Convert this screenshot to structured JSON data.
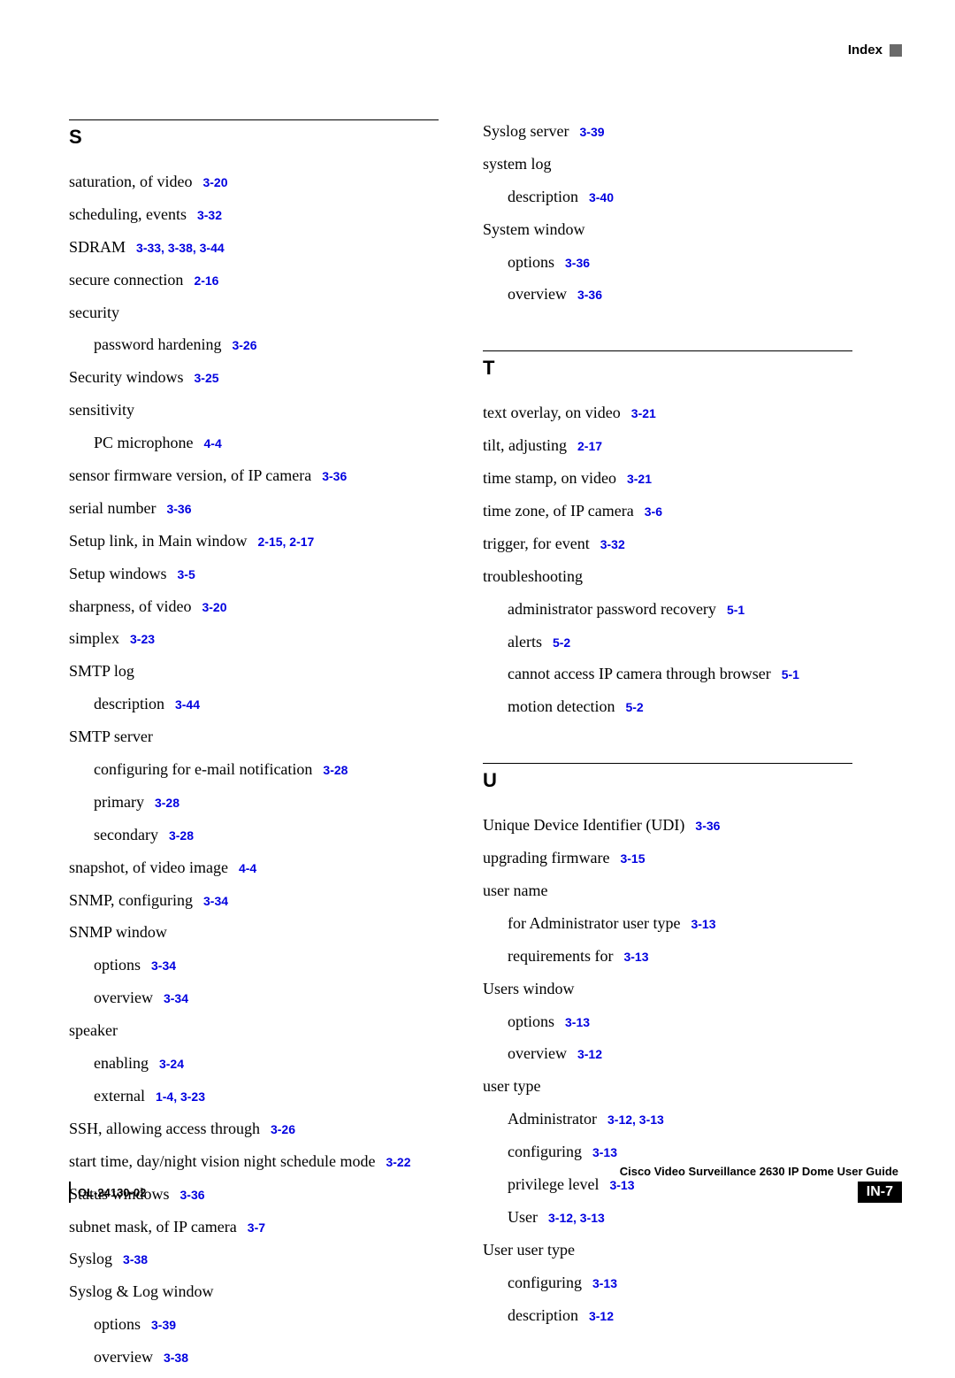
{
  "header": {
    "label": "Index"
  },
  "footer": {
    "title": "Cisco Video Surveillance 2630 IP Dome User Guide",
    "docnum": "OL-24130-02",
    "pagenum": "IN-7"
  },
  "link_color": "#0000e0",
  "left_column": {
    "sections": [
      {
        "letter": "S",
        "entries": [
          {
            "text": "saturation, of video",
            "refs": [
              "3-20"
            ],
            "indent": 0
          },
          {
            "text": "scheduling, events",
            "refs": [
              "3-32"
            ],
            "indent": 0
          },
          {
            "text": "SDRAM",
            "refs": [
              "3-33, 3-38, 3-44"
            ],
            "indent": 0
          },
          {
            "text": "secure connection",
            "refs": [
              "2-16"
            ],
            "indent": 0
          },
          {
            "text": "security",
            "refs": [],
            "indent": 0
          },
          {
            "text": "password hardening",
            "refs": [
              "3-26"
            ],
            "indent": 1
          },
          {
            "text": "Security windows",
            "refs": [
              "3-25"
            ],
            "indent": 0
          },
          {
            "text": "sensitivity",
            "refs": [],
            "indent": 0
          },
          {
            "text": "PC microphone",
            "refs": [
              "4-4"
            ],
            "indent": 1
          },
          {
            "text": "sensor firmware version, of IP camera",
            "refs": [
              "3-36"
            ],
            "indent": 0
          },
          {
            "text": "serial number",
            "refs": [
              "3-36"
            ],
            "indent": 0
          },
          {
            "text": "Setup link, in Main window",
            "refs": [
              "2-15, 2-17"
            ],
            "indent": 0
          },
          {
            "text": "Setup windows",
            "refs": [
              "3-5"
            ],
            "indent": 0
          },
          {
            "text": "sharpness, of video",
            "refs": [
              "3-20"
            ],
            "indent": 0
          },
          {
            "text": "simplex",
            "refs": [
              "3-23"
            ],
            "indent": 0
          },
          {
            "text": "SMTP log",
            "refs": [],
            "indent": 0
          },
          {
            "text": "description",
            "refs": [
              "3-44"
            ],
            "indent": 1
          },
          {
            "text": "SMTP server",
            "refs": [],
            "indent": 0
          },
          {
            "text": "configuring for e-mail notification",
            "refs": [
              "3-28"
            ],
            "indent": 1
          },
          {
            "text": "primary",
            "refs": [
              "3-28"
            ],
            "indent": 1
          },
          {
            "text": "secondary",
            "refs": [
              "3-28"
            ],
            "indent": 1
          },
          {
            "text": "snapshot, of video image",
            "refs": [
              "4-4"
            ],
            "indent": 0
          },
          {
            "text": "SNMP, configuring",
            "refs": [
              "3-34"
            ],
            "indent": 0
          },
          {
            "text": "SNMP window",
            "refs": [],
            "indent": 0
          },
          {
            "text": "options",
            "refs": [
              "3-34"
            ],
            "indent": 1
          },
          {
            "text": "overview",
            "refs": [
              "3-34"
            ],
            "indent": 1
          },
          {
            "text": "speaker",
            "refs": [],
            "indent": 0
          },
          {
            "text": "enabling",
            "refs": [
              "3-24"
            ],
            "indent": 1
          },
          {
            "text": "external",
            "refs": [
              "1-4, 3-23"
            ],
            "indent": 1
          },
          {
            "text": "SSH, allowing access through",
            "refs": [
              "3-26"
            ],
            "indent": 0
          },
          {
            "text": "start time, day/night vision night schedule mode",
            "refs": [
              "3-22"
            ],
            "indent": 0
          },
          {
            "text": "Status windows",
            "refs": [
              "3-36"
            ],
            "indent": 0
          },
          {
            "text": "subnet mask, of IP camera",
            "refs": [
              "3-7"
            ],
            "indent": 0
          },
          {
            "text": "Syslog",
            "refs": [
              "3-38"
            ],
            "indent": 0
          },
          {
            "text": "Syslog & Log window",
            "refs": [],
            "indent": 0
          },
          {
            "text": "options",
            "refs": [
              "3-39"
            ],
            "indent": 1
          },
          {
            "text": "overview",
            "refs": [
              "3-38"
            ],
            "indent": 1
          }
        ]
      }
    ]
  },
  "right_column": {
    "pre_entries": [
      {
        "text": "Syslog server",
        "refs": [
          "3-39"
        ],
        "indent": 0
      },
      {
        "text": "system log",
        "refs": [],
        "indent": 0
      },
      {
        "text": "description",
        "refs": [
          "3-40"
        ],
        "indent": 1
      },
      {
        "text": "System window",
        "refs": [],
        "indent": 0
      },
      {
        "text": "options",
        "refs": [
          "3-36"
        ],
        "indent": 1
      },
      {
        "text": "overview",
        "refs": [
          "3-36"
        ],
        "indent": 1
      }
    ],
    "sections": [
      {
        "letter": "T",
        "entries": [
          {
            "text": "text overlay, on video",
            "refs": [
              "3-21"
            ],
            "indent": 0
          },
          {
            "text": "tilt, adjusting",
            "refs": [
              "2-17"
            ],
            "indent": 0
          },
          {
            "text": "time stamp, on video",
            "refs": [
              "3-21"
            ],
            "indent": 0
          },
          {
            "text": "time zone, of IP camera",
            "refs": [
              "3-6"
            ],
            "indent": 0
          },
          {
            "text": "trigger, for event",
            "refs": [
              "3-32"
            ],
            "indent": 0
          },
          {
            "text": "troubleshooting",
            "refs": [],
            "indent": 0
          },
          {
            "text": "administrator password recovery",
            "refs": [
              "5-1"
            ],
            "indent": 1
          },
          {
            "text": "alerts",
            "refs": [
              "5-2"
            ],
            "indent": 1
          },
          {
            "text": "cannot access IP camera through browser",
            "refs": [
              "5-1"
            ],
            "indent": 1
          },
          {
            "text": "motion detection",
            "refs": [
              "5-2"
            ],
            "indent": 1
          }
        ]
      },
      {
        "letter": "U",
        "entries": [
          {
            "text": "Unique Device Identifier (UDI)",
            "refs": [
              "3-36"
            ],
            "indent": 0
          },
          {
            "text": "upgrading firmware",
            "refs": [
              "3-15"
            ],
            "indent": 0
          },
          {
            "text": "user name",
            "refs": [],
            "indent": 0
          },
          {
            "text": "for Administrator user type",
            "refs": [
              "3-13"
            ],
            "indent": 1
          },
          {
            "text": "requirements for",
            "refs": [
              "3-13"
            ],
            "indent": 1
          },
          {
            "text": "Users window",
            "refs": [],
            "indent": 0
          },
          {
            "text": "options",
            "refs": [
              "3-13"
            ],
            "indent": 1
          },
          {
            "text": "overview",
            "refs": [
              "3-12"
            ],
            "indent": 1
          },
          {
            "text": "user type",
            "refs": [],
            "indent": 0
          },
          {
            "text": "Administrator",
            "refs": [
              "3-12, 3-13"
            ],
            "indent": 1
          },
          {
            "text": "configuring",
            "refs": [
              "3-13"
            ],
            "indent": 1
          },
          {
            "text": "privilege level",
            "refs": [
              "3-13"
            ],
            "indent": 1
          },
          {
            "text": "User",
            "refs": [
              "3-12, 3-13"
            ],
            "indent": 1
          },
          {
            "text": "User user type",
            "refs": [],
            "indent": 0
          },
          {
            "text": "configuring",
            "refs": [
              "3-13"
            ],
            "indent": 1
          },
          {
            "text": "description",
            "refs": [
              "3-12"
            ],
            "indent": 1
          }
        ]
      }
    ]
  }
}
